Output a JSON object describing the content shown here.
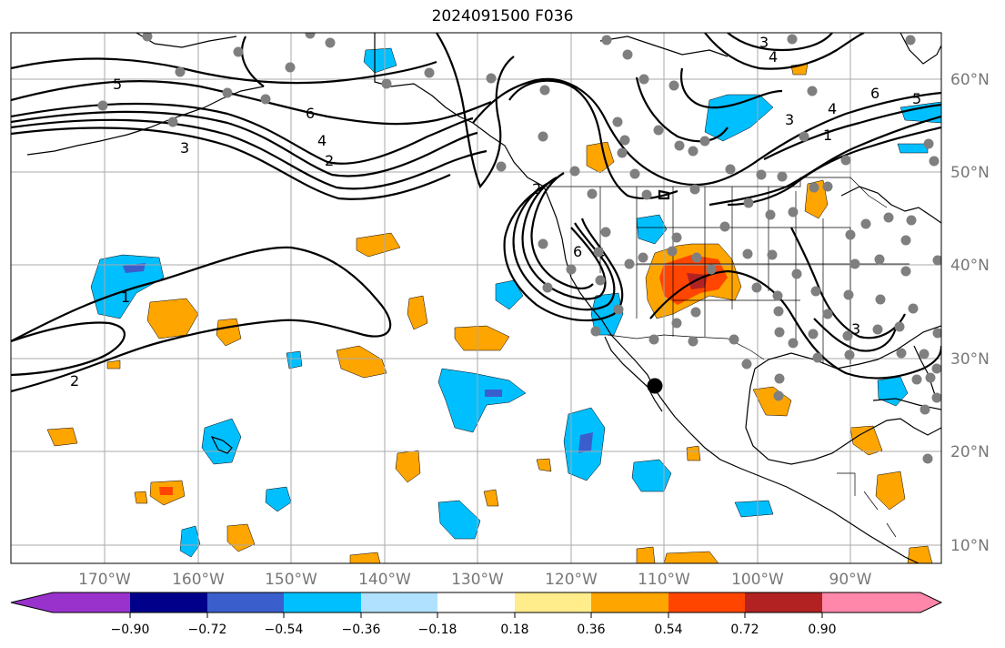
{
  "title": "2024091500 F036",
  "map": {
    "lon_labels": [
      "170°W",
      "160°W",
      "150°W",
      "140°W",
      "130°W",
      "120°W",
      "110°W",
      "100°W",
      "90°W"
    ],
    "lat_labels": [
      "60°N",
      "50°N",
      "40°N",
      "30°N",
      "20°N",
      "10°N"
    ],
    "contour_labels": [
      "2",
      "1",
      "2",
      "4",
      "5",
      "6",
      "4",
      "3",
      "6",
      "2",
      "3",
      "4",
      "5",
      "6",
      "3",
      "1",
      "4",
      "3"
    ]
  },
  "colorbar": {
    "tick_labels": [
      "−0.90",
      "−0.72",
      "−0.54",
      "−0.36",
      "−0.18",
      "0.18",
      "0.36",
      "0.54",
      "0.72",
      "0.90"
    ],
    "colors": [
      "#9932CC",
      "#00008B",
      "#3A5FCD",
      "#00BFFF",
      "#B0E2FF",
      "#FFFFFF",
      "#FFEC8B",
      "#FFA500",
      "#FF4500",
      "#B22222",
      "#FF88AA"
    ]
  }
}
